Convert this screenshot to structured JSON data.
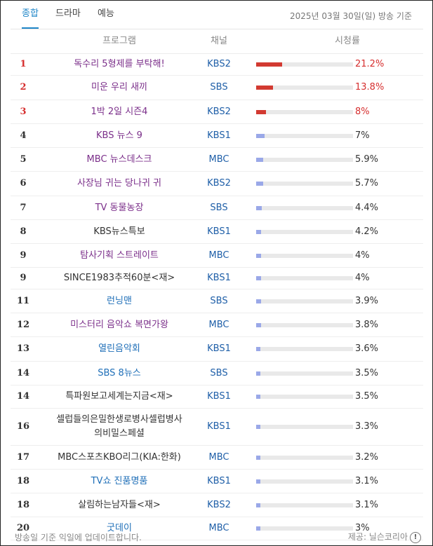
{
  "tabs": [
    {
      "label": "종합",
      "active": true
    },
    {
      "label": "드라마",
      "active": false
    },
    {
      "label": "예능",
      "active": false
    }
  ],
  "date_note": "2025년 03월 30일(일) 방송 기준",
  "columns": {
    "program": "프로그램",
    "channel": "채널",
    "rating": "시청률"
  },
  "rows": [
    {
      "rank": "1",
      "program": [
        "독수리 5형제를 부탁해!"
      ],
      "channel": "KBS2",
      "rating": "21.2%",
      "value": 21.2,
      "style": "purple",
      "top": true
    },
    {
      "rank": "2",
      "program": [
        "미운 우리 새끼"
      ],
      "channel": "SBS",
      "rating": "13.8%",
      "value": 13.8,
      "style": "purple",
      "top": true
    },
    {
      "rank": "3",
      "program": [
        "1박 2일 시즌4"
      ],
      "channel": "KBS2",
      "rating": "8%",
      "value": 8,
      "style": "purple",
      "top": true
    },
    {
      "rank": "4",
      "program": [
        "KBS 뉴스 9"
      ],
      "channel": "KBS1",
      "rating": "7%",
      "value": 7,
      "style": "purple",
      "top": false
    },
    {
      "rank": "5",
      "program": [
        "MBC 뉴스데스크"
      ],
      "channel": "MBC",
      "rating": "5.9%",
      "value": 5.9,
      "style": "purple",
      "top": false
    },
    {
      "rank": "6",
      "program": [
        "사장님 귀는 당나귀 귀"
      ],
      "channel": "KBS2",
      "rating": "5.7%",
      "value": 5.7,
      "style": "purple",
      "top": false
    },
    {
      "rank": "7",
      "program": [
        "TV 동물농장"
      ],
      "channel": "SBS",
      "rating": "4.4%",
      "value": 4.4,
      "style": "purple",
      "top": false
    },
    {
      "rank": "8",
      "program": [
        "KBS뉴스특보"
      ],
      "channel": "KBS1",
      "rating": "4.2%",
      "value": 4.2,
      "style": "dark",
      "top": false
    },
    {
      "rank": "9",
      "program": [
        "탐사기획 스트레이트"
      ],
      "channel": "MBC",
      "rating": "4%",
      "value": 4,
      "style": "purple",
      "top": false
    },
    {
      "rank": "9",
      "program": [
        "SINCE1983추적60분<재>"
      ],
      "channel": "KBS1",
      "rating": "4%",
      "value": 4,
      "style": "dark",
      "top": false
    },
    {
      "rank": "11",
      "program": [
        "런닝맨"
      ],
      "channel": "SBS",
      "rating": "3.9%",
      "value": 3.9,
      "style": "blue",
      "top": false
    },
    {
      "rank": "12",
      "program": [
        "미스터리 음악쇼 복면가왕"
      ],
      "channel": "MBC",
      "rating": "3.8%",
      "value": 3.8,
      "style": "purple",
      "top": false
    },
    {
      "rank": "13",
      "program": [
        "열린음악회"
      ],
      "channel": "KBS1",
      "rating": "3.6%",
      "value": 3.6,
      "style": "blue",
      "top": false
    },
    {
      "rank": "14",
      "program": [
        "SBS 8뉴스"
      ],
      "channel": "SBS",
      "rating": "3.5%",
      "value": 3.5,
      "style": "blue",
      "top": false
    },
    {
      "rank": "14",
      "program": [
        "특파원보고세계는지금<재>"
      ],
      "channel": "KBS1",
      "rating": "3.5%",
      "value": 3.5,
      "style": "dark",
      "top": false
    },
    {
      "rank": "16",
      "program": [
        "셀럽들의은밀한생로병사셀럽병사",
        "의비밀스페셜"
      ],
      "channel": "KBS1",
      "rating": "3.3%",
      "value": 3.3,
      "style": "dark",
      "top": false
    },
    {
      "rank": "17",
      "program": [
        "MBC스포츠KBO리그(KIA:한화)"
      ],
      "channel": "MBC",
      "rating": "3.2%",
      "value": 3.2,
      "style": "dark",
      "top": false
    },
    {
      "rank": "18",
      "program": [
        "TV쇼 진품명품"
      ],
      "channel": "KBS1",
      "rating": "3.1%",
      "value": 3.1,
      "style": "blue",
      "top": false
    },
    {
      "rank": "18",
      "program": [
        "살림하는남자들<재>"
      ],
      "channel": "KBS2",
      "rating": "3.1%",
      "value": 3.1,
      "style": "dark",
      "top": false
    },
    {
      "rank": "20",
      "program": [
        "굿데이"
      ],
      "channel": "MBC",
      "rating": "3%",
      "value": 3,
      "style": "blue",
      "top": false
    }
  ],
  "rating_scale_max": 80,
  "footer": {
    "note": "방송일 기준 익일에 업데이트합니다.",
    "provider": "제공: 닐슨코리아",
    "info_icon": "info-icon",
    "info_glyph": "!"
  }
}
